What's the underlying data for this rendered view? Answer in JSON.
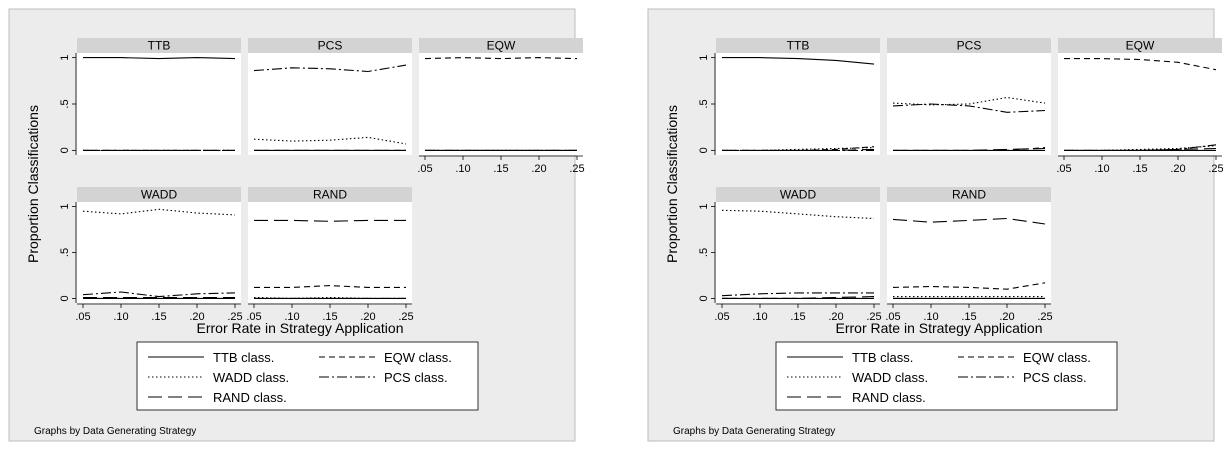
{
  "chart_data": [
    {
      "type": "line",
      "by_label": "Graphs by Data Generating Strategy",
      "xlabel": "Error Rate in Strategy Application",
      "ylabel": "Proportion Classifications",
      "x": [
        0.05,
        0.1,
        0.15,
        0.2,
        0.25
      ],
      "x_tick_labels": [
        ".05",
        ".10",
        ".15",
        ".20",
        ".25"
      ],
      "y_tick_labels": [
        "0",
        ".5",
        "1"
      ],
      "ylim": [
        -0.05,
        1.05
      ],
      "legend": [
        "TTB class.",
        "EQW class.",
        "WADD class.",
        "PCS class.",
        "RAND class."
      ],
      "panels": [
        {
          "title": "TTB",
          "series": [
            {
              "name": "TTB class.",
              "values": [
                1.0,
                1.0,
                0.99,
                1.0,
                0.99
              ]
            },
            {
              "name": "EQW class.",
              "values": [
                0.0,
                0.0,
                0.0,
                0.0,
                0.0
              ]
            },
            {
              "name": "WADD class.",
              "values": [
                0.0,
                0.0,
                0.0,
                0.0,
                0.0
              ]
            },
            {
              "name": "PCS class.",
              "values": [
                0.0,
                0.0,
                0.0,
                0.0,
                0.0
              ]
            },
            {
              "name": "RAND class.",
              "values": [
                0.0,
                0.0,
                0.0,
                0.0,
                0.0
              ]
            }
          ]
        },
        {
          "title": "PCS",
          "series": [
            {
              "name": "TTB class.",
              "values": [
                0.0,
                0.0,
                0.0,
                0.0,
                0.0
              ]
            },
            {
              "name": "EQW class.",
              "values": [
                0.0,
                0.0,
                0.0,
                0.0,
                0.0
              ]
            },
            {
              "name": "WADD class.",
              "values": [
                0.12,
                0.1,
                0.11,
                0.14,
                0.07
              ]
            },
            {
              "name": "PCS class.",
              "values": [
                0.86,
                0.89,
                0.88,
                0.85,
                0.92
              ]
            },
            {
              "name": "RAND class.",
              "values": [
                0.0,
                0.0,
                0.0,
                0.0,
                0.0
              ]
            }
          ]
        },
        {
          "title": "EQW",
          "series": [
            {
              "name": "TTB class.",
              "values": [
                0.0,
                0.0,
                0.0,
                0.0,
                0.0
              ]
            },
            {
              "name": "EQW class.",
              "values": [
                0.99,
                1.0,
                0.99,
                1.0,
                0.99
              ]
            },
            {
              "name": "WADD class.",
              "values": [
                0.0,
                0.0,
                0.0,
                0.0,
                0.0
              ]
            },
            {
              "name": "PCS class.",
              "values": [
                0.0,
                0.0,
                0.0,
                0.0,
                0.0
              ]
            },
            {
              "name": "RAND class.",
              "values": [
                0.0,
                0.0,
                0.0,
                0.0,
                0.0
              ]
            }
          ]
        },
        {
          "title": "WADD",
          "series": [
            {
              "name": "TTB class.",
              "values": [
                0.0,
                0.0,
                0.0,
                0.0,
                0.0
              ]
            },
            {
              "name": "EQW class.",
              "values": [
                0.0,
                0.0,
                0.0,
                0.0,
                0.0
              ]
            },
            {
              "name": "WADD class.",
              "values": [
                0.95,
                0.92,
                0.97,
                0.93,
                0.91
              ]
            },
            {
              "name": "PCS class.",
              "values": [
                0.04,
                0.07,
                0.02,
                0.05,
                0.06
              ]
            },
            {
              "name": "RAND class.",
              "values": [
                0.01,
                0.01,
                0.01,
                0.01,
                0.01
              ]
            }
          ]
        },
        {
          "title": "RAND",
          "series": [
            {
              "name": "TTB class.",
              "values": [
                0.0,
                0.0,
                0.0,
                0.0,
                0.0
              ]
            },
            {
              "name": "EQW class.",
              "values": [
                0.12,
                0.12,
                0.14,
                0.12,
                0.12
              ]
            },
            {
              "name": "WADD class.",
              "values": [
                0.01,
                0.0,
                0.01,
                0.0,
                0.0
              ]
            },
            {
              "name": "PCS class.",
              "values": [
                0.0,
                0.0,
                0.0,
                0.0,
                0.0
              ]
            },
            {
              "name": "RAND class.",
              "values": [
                0.85,
                0.85,
                0.84,
                0.85,
                0.85
              ]
            }
          ]
        }
      ]
    },
    {
      "type": "line",
      "by_label": "Graphs by Data Generating Strategy",
      "xlabel": "Error Rate in Strategy Application",
      "ylabel": "Proportion Classifications",
      "x": [
        0.05,
        0.1,
        0.15,
        0.2,
        0.25
      ],
      "x_tick_labels": [
        ".05",
        ".10",
        ".15",
        ".20",
        ".25"
      ],
      "y_tick_labels": [
        "0",
        ".5",
        "1"
      ],
      "ylim": [
        -0.05,
        1.05
      ],
      "legend": [
        "TTB class.",
        "EQW class.",
        "WADD class.",
        "PCS class.",
        "RAND class."
      ],
      "panels": [
        {
          "title": "TTB",
          "series": [
            {
              "name": "TTB class.",
              "values": [
                1.0,
                1.0,
                0.99,
                0.97,
                0.93
              ]
            },
            {
              "name": "EQW class.",
              "values": [
                0.0,
                0.0,
                0.0,
                0.01,
                0.04
              ]
            },
            {
              "name": "WADD class.",
              "values": [
                0.0,
                0.0,
                0.01,
                0.02,
                0.03
              ]
            },
            {
              "name": "PCS class.",
              "values": [
                0.0,
                0.0,
                0.0,
                0.0,
                0.0
              ]
            },
            {
              "name": "RAND class.",
              "values": [
                0.0,
                0.0,
                0.0,
                0.0,
                0.01
              ]
            }
          ]
        },
        {
          "title": "PCS",
          "series": [
            {
              "name": "TTB class.",
              "values": [
                0.0,
                0.0,
                0.0,
                0.0,
                0.0
              ]
            },
            {
              "name": "EQW class.",
              "values": [
                0.0,
                0.0,
                0.0,
                0.0,
                0.03
              ]
            },
            {
              "name": "WADD class.",
              "values": [
                0.51,
                0.49,
                0.5,
                0.57,
                0.51
              ]
            },
            {
              "name": "PCS class.",
              "values": [
                0.48,
                0.5,
                0.48,
                0.41,
                0.43
              ]
            },
            {
              "name": "RAND class.",
              "values": [
                0.0,
                0.0,
                0.0,
                0.01,
                0.02
              ]
            }
          ]
        },
        {
          "title": "EQW",
          "series": [
            {
              "name": "TTB class.",
              "values": [
                0.0,
                0.0,
                0.0,
                0.0,
                0.0
              ]
            },
            {
              "name": "EQW class.",
              "values": [
                0.99,
                0.99,
                0.98,
                0.95,
                0.87
              ]
            },
            {
              "name": "WADD class.",
              "values": [
                0.0,
                0.0,
                0.01,
                0.02,
                0.05
              ]
            },
            {
              "name": "PCS class.",
              "values": [
                0.0,
                0.0,
                0.0,
                0.01,
                0.06
              ]
            },
            {
              "name": "RAND class.",
              "values": [
                0.0,
                0.0,
                0.0,
                0.01,
                0.02
              ]
            }
          ]
        },
        {
          "title": "WADD",
          "series": [
            {
              "name": "TTB class.",
              "values": [
                0.0,
                0.0,
                0.0,
                0.0,
                0.0
              ]
            },
            {
              "name": "EQW class.",
              "values": [
                0.0,
                0.0,
                0.0,
                0.0,
                0.0
              ]
            },
            {
              "name": "WADD class.",
              "values": [
                0.96,
                0.95,
                0.92,
                0.89,
                0.87
              ]
            },
            {
              "name": "PCS class.",
              "values": [
                0.03,
                0.05,
                0.06,
                0.06,
                0.06
              ]
            },
            {
              "name": "RAND class.",
              "values": [
                0.0,
                0.0,
                0.0,
                0.01,
                0.02
              ]
            }
          ]
        },
        {
          "title": "RAND",
          "series": [
            {
              "name": "TTB class.",
              "values": [
                0.0,
                0.0,
                0.0,
                0.0,
                0.0
              ]
            },
            {
              "name": "EQW class.",
              "values": [
                0.12,
                0.13,
                0.12,
                0.1,
                0.17
              ]
            },
            {
              "name": "WADD class.",
              "values": [
                0.02,
                0.02,
                0.02,
                0.02,
                0.02
              ]
            },
            {
              "name": "PCS class.",
              "values": [
                0.0,
                0.0,
                0.0,
                0.0,
                0.0
              ]
            },
            {
              "name": "RAND class.",
              "values": [
                0.86,
                0.83,
                0.85,
                0.87,
                0.81
              ]
            }
          ]
        }
      ]
    }
  ]
}
